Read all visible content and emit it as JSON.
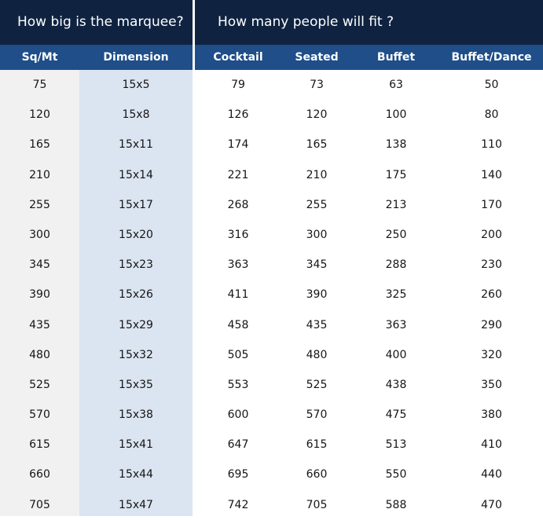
{
  "titles": {
    "left": "How big is the marquee?",
    "right": "How many people will fit ?"
  },
  "columns": [
    "Sq/Mt",
    "Dimension",
    "Cocktail",
    "Seated",
    "Buffet",
    "Buffet/Dance"
  ],
  "rows": [
    [
      "75",
      "15x5",
      "79",
      "73",
      "63",
      "50"
    ],
    [
      "120",
      "15x8",
      "126",
      "120",
      "100",
      "80"
    ],
    [
      "165",
      "15x11",
      "174",
      "165",
      "138",
      "110"
    ],
    [
      "210",
      "15x14",
      "221",
      "210",
      "175",
      "140"
    ],
    [
      "255",
      "15x17",
      "268",
      "255",
      "213",
      "170"
    ],
    [
      "300",
      "15x20",
      "316",
      "300",
      "250",
      "200"
    ],
    [
      "345",
      "15x23",
      "363",
      "345",
      "288",
      "230"
    ],
    [
      "390",
      "15x26",
      "411",
      "390",
      "325",
      "260"
    ],
    [
      "435",
      "15x29",
      "458",
      "435",
      "363",
      "290"
    ],
    [
      "480",
      "15x32",
      "505",
      "480",
      "400",
      "320"
    ],
    [
      "525",
      "15x35",
      "553",
      "525",
      "438",
      "350"
    ],
    [
      "570",
      "15x38",
      "600",
      "570",
      "475",
      "380"
    ],
    [
      "615",
      "15x41",
      "647",
      "615",
      "513",
      "410"
    ],
    [
      "660",
      "15x44",
      "695",
      "660",
      "550",
      "440"
    ],
    [
      "705",
      "15x47",
      "742",
      "705",
      "588",
      "470"
    ]
  ],
  "colors": {
    "title_bar": "#0f2341",
    "header_bar": "#1f4e88",
    "sqmt_column": "#f1f1f1",
    "dimension_column": "#dbe5f1"
  }
}
